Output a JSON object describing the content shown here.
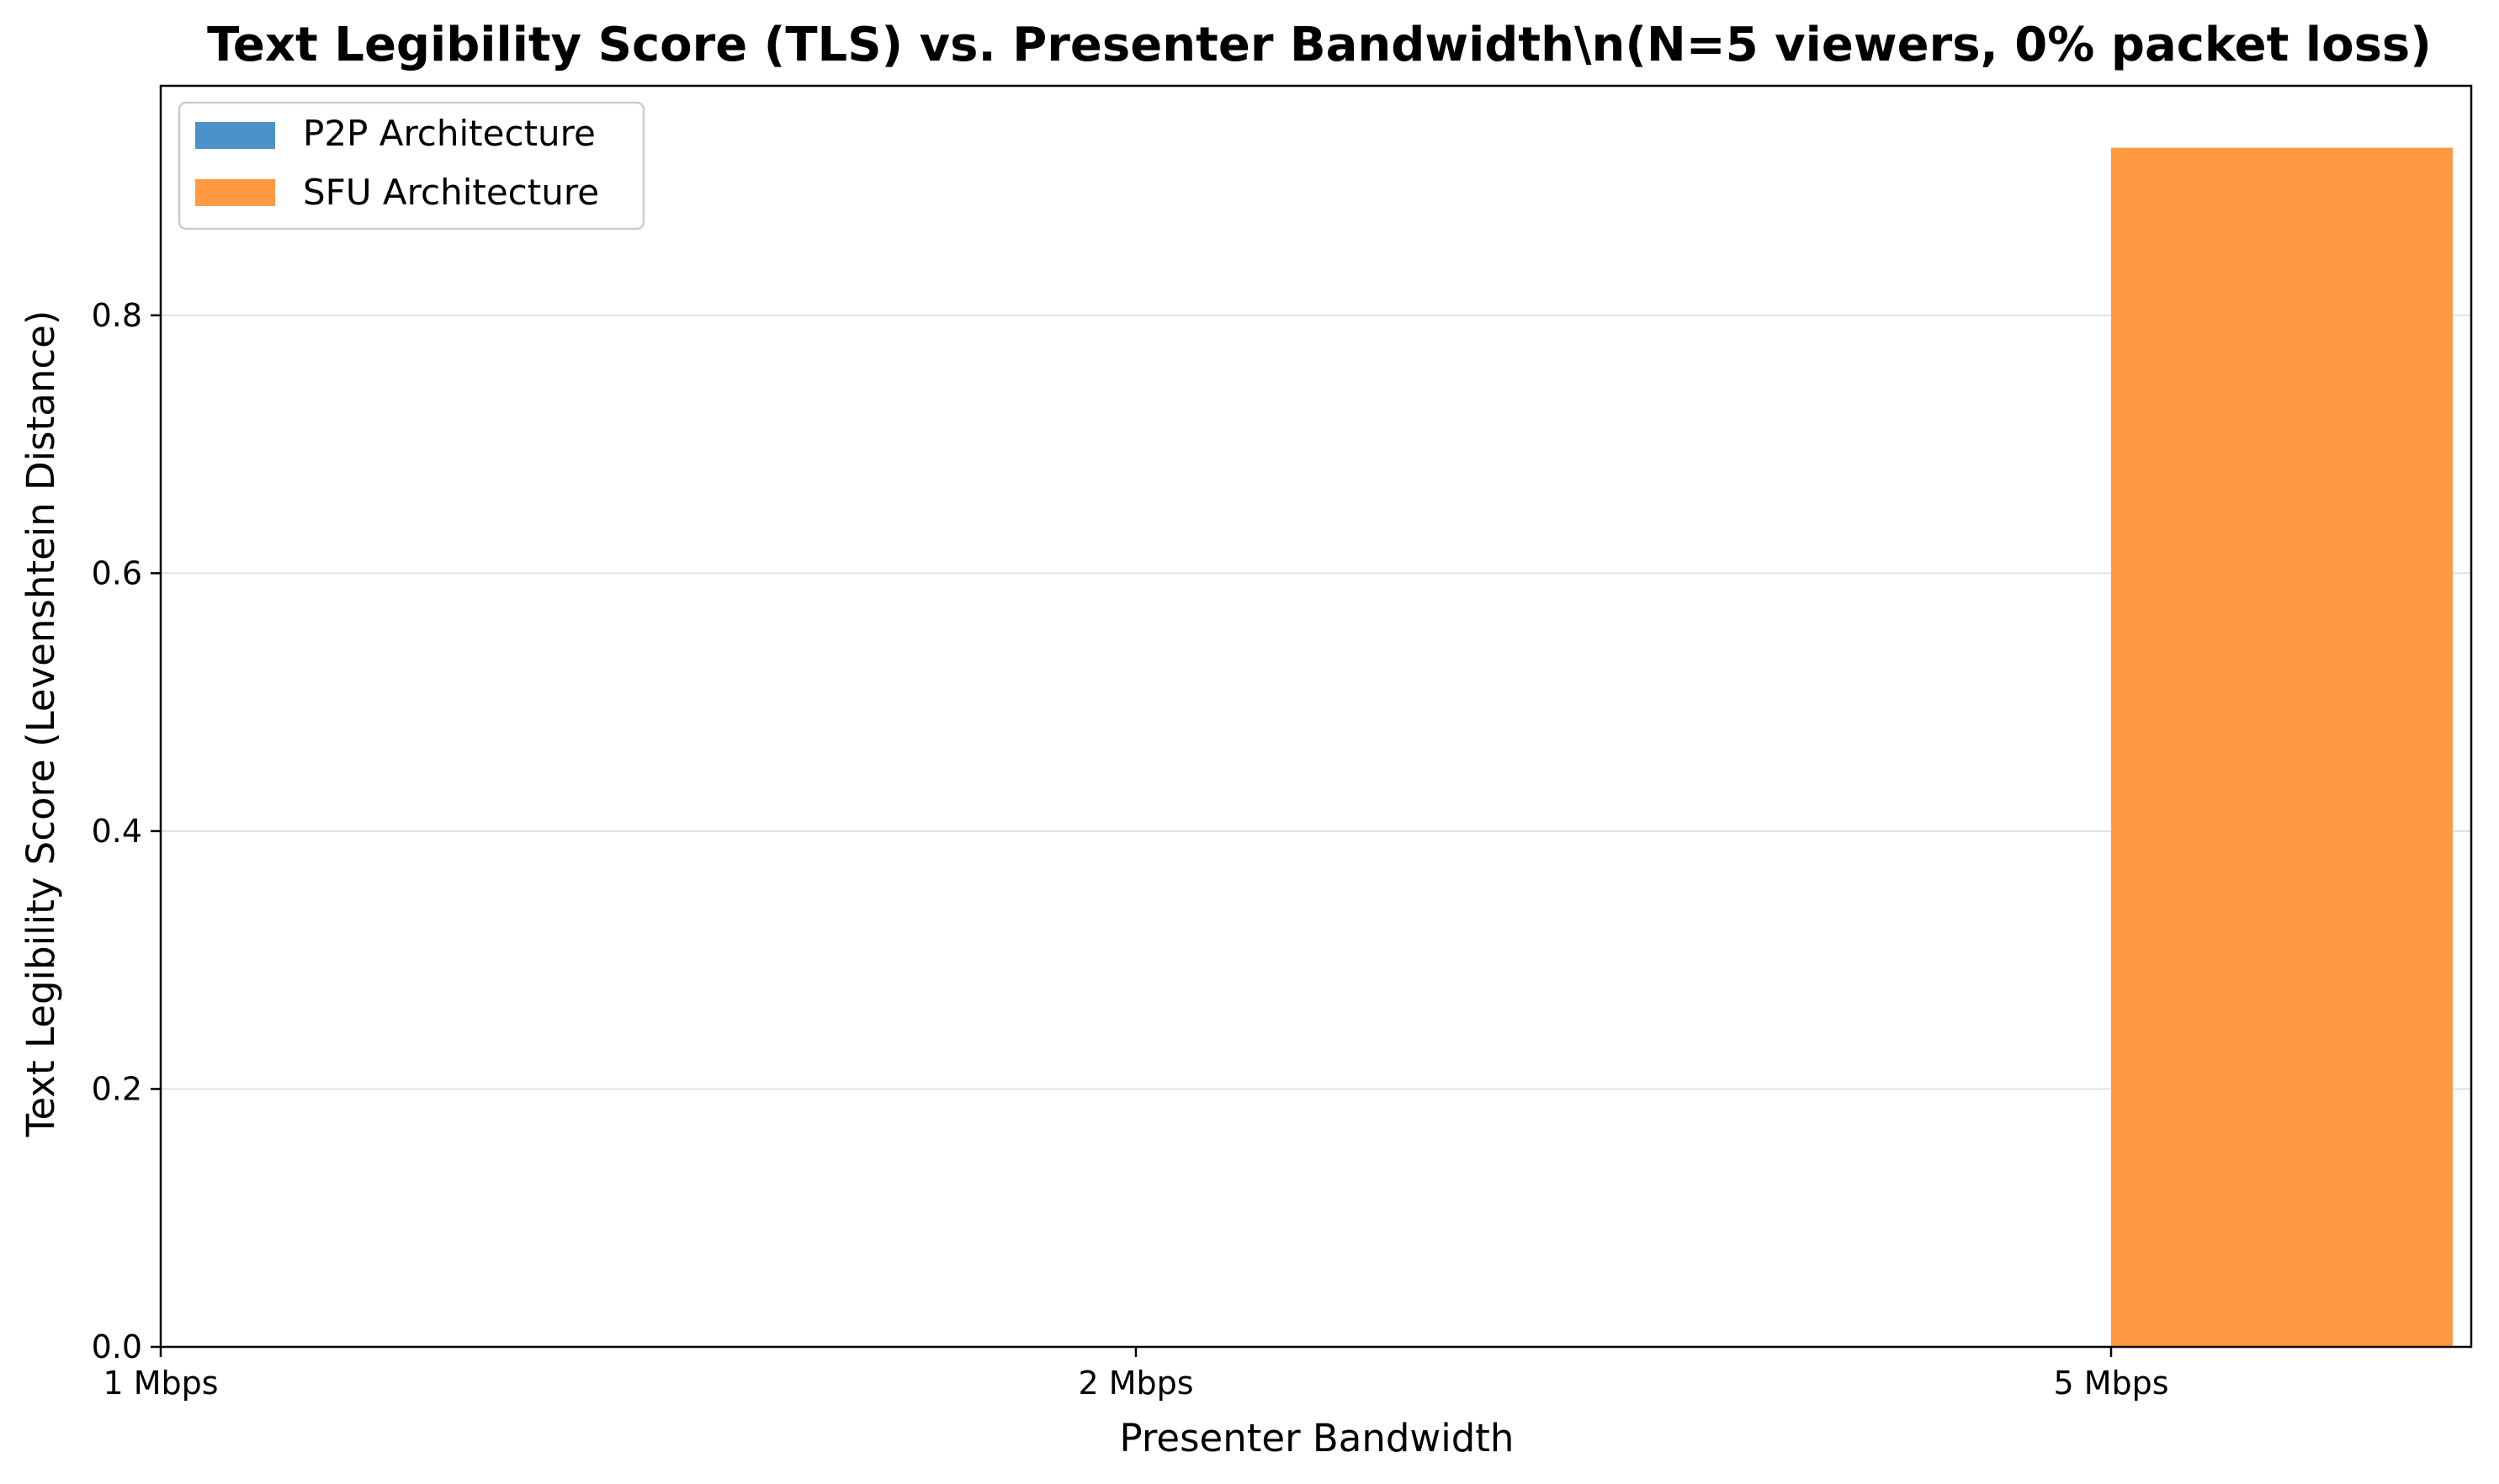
{
  "chart_data": {
    "type": "bar",
    "title": "Text Legibility Score (TLS) vs. Presenter Bandwidth\\n(N=5 viewers, 0% packet loss)",
    "xlabel": "Presenter Bandwidth",
    "ylabel": "Text Legibility Score (Levenshtein Distance)",
    "categories": [
      "1 Mbps",
      "2 Mbps",
      "5 Mbps"
    ],
    "series": [
      {
        "name": "P2P Architecture",
        "color": "#4c91c8",
        "values": [
          0,
          0,
          0
        ]
      },
      {
        "name": "SFU Architecture",
        "color": "#ff9a42",
        "values": [
          0,
          0,
          0.93
        ]
      }
    ],
    "ylim": [
      0,
      0.978
    ],
    "yticks": [
      "0.0",
      "0.2",
      "0.4",
      "0.6",
      "0.8"
    ],
    "ytick_values": [
      0,
      0.2,
      0.4,
      0.6,
      0.8
    ],
    "grid": "y",
    "legend_position": "top-left"
  }
}
